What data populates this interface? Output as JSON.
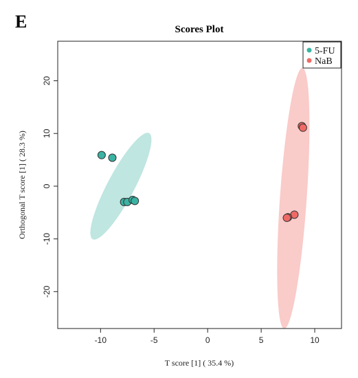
{
  "panel_letter": "E",
  "chart_data": {
    "type": "scatter",
    "title": "Scores Plot",
    "xlabel": "T score [1] ( 35.4 %)",
    "ylabel": "Orthogonal T score [1] ( 28.3 %)",
    "xlim": [
      -14,
      12.5
    ],
    "ylim": [
      -27,
      27.5
    ],
    "xticks": [
      -10,
      -5,
      0,
      5,
      10
    ],
    "yticks": [
      -20,
      -10,
      0,
      10,
      20
    ],
    "grid": false,
    "legend_position": "top-right",
    "series": [
      {
        "name": "5-FU",
        "color": "#3bb3a3",
        "ellipse_color": "#a9ddd6",
        "points": [
          {
            "x": -9.9,
            "y": 5.9
          },
          {
            "x": -8.9,
            "y": 5.4
          },
          {
            "x": -7.8,
            "y": -3.0
          },
          {
            "x": -7.5,
            "y": -3.0
          },
          {
            "x": -7.0,
            "y": -2.6
          },
          {
            "x": -6.8,
            "y": -2.8
          }
        ],
        "ellipse": {
          "cx": -8.1,
          "cy": 0.0,
          "rx": 1.25,
          "ry": 11.4,
          "angle": 28
        }
      },
      {
        "name": "NaB",
        "color": "#ef6a66",
        "ellipse_color": "#f7b9b7",
        "points": [
          {
            "x": 8.8,
            "y": 11.4
          },
          {
            "x": 8.9,
            "y": 11.1
          },
          {
            "x": 8.1,
            "y": -5.4
          },
          {
            "x": 7.5,
            "y": -5.9
          },
          {
            "x": 7.4,
            "y": -6.0
          }
        ],
        "ellipse": {
          "cx": 8.0,
          "cy": -2.3,
          "rx": 1.25,
          "ry": 24.8,
          "angle": 4
        }
      }
    ]
  }
}
